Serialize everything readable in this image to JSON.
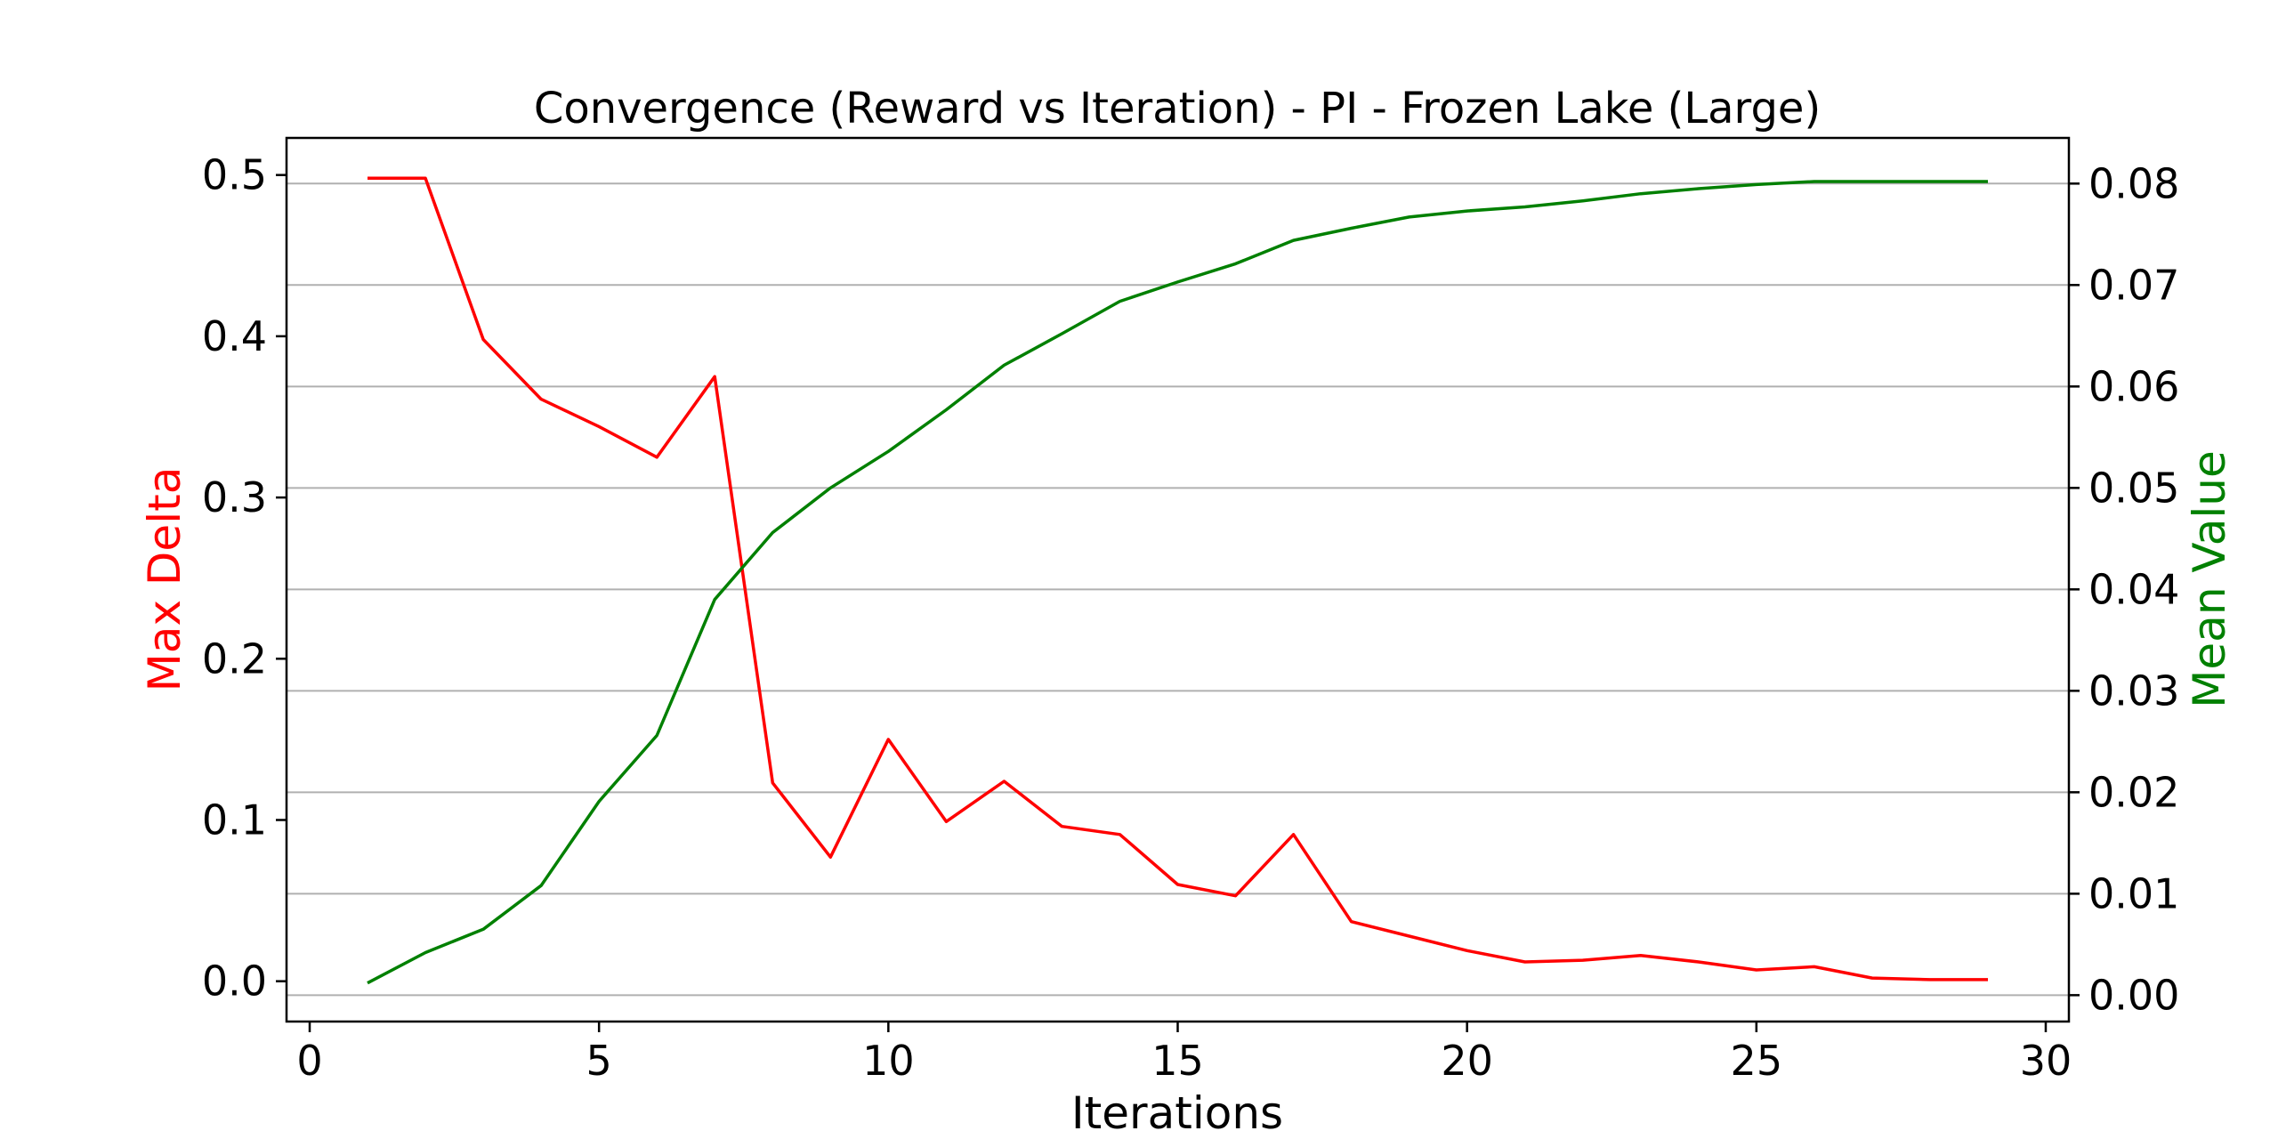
{
  "chart_data": {
    "type": "line",
    "title": "Convergence (Reward vs Iteration) - PI - Frozen Lake (Large)",
    "xlabel": "Iterations",
    "ylabel_left": "Max Delta",
    "ylabel_right": "Mean Value",
    "xlim": [
      -0.4,
      30.4
    ],
    "ylim_left": [
      -0.025,
      0.523
    ],
    "ylim_right": [
      -0.0026,
      0.0845
    ],
    "xticks": [
      "0",
      "5",
      "10",
      "15",
      "20",
      "25",
      "30"
    ],
    "yticks_left": [
      "0.0",
      "0.1",
      "0.2",
      "0.3",
      "0.4",
      "0.5"
    ],
    "yticks_right": [
      "0.00",
      "0.01",
      "0.02",
      "0.03",
      "0.04",
      "0.05",
      "0.06",
      "0.07",
      "0.08"
    ],
    "grid": "horizontal-right-axis",
    "colors": {
      "left_series": "#ff0000",
      "right_series": "#008000",
      "grid": "#b0b0b0"
    },
    "x": [
      1,
      2,
      3,
      4,
      5,
      6,
      7,
      8,
      9,
      10,
      11,
      12,
      13,
      14,
      15,
      16,
      17,
      18,
      19,
      20,
      21,
      22,
      23,
      24,
      25,
      26,
      27,
      28,
      29
    ],
    "series": [
      {
        "axis": "left",
        "values": [
          0.498,
          0.498,
          0.398,
          0.361,
          0.344,
          0.325,
          0.375,
          0.123,
          0.077,
          0.15,
          0.099,
          0.124,
          0.096,
          0.091,
          0.06,
          0.053,
          0.091,
          0.037,
          0.028,
          0.019,
          0.012,
          0.013,
          0.016,
          0.012,
          0.007,
          0.009,
          0.002,
          0.001,
          0.001
        ]
      },
      {
        "axis": "right",
        "values": [
          0.0012,
          0.0042,
          0.0065,
          0.0108,
          0.0191,
          0.0256,
          0.039,
          0.0456,
          0.05,
          0.0536,
          0.0577,
          0.0621,
          0.0652,
          0.0684,
          0.0703,
          0.0721,
          0.0744,
          0.0756,
          0.0767,
          0.0773,
          0.0777,
          0.0783,
          0.079,
          0.0795,
          0.0799,
          0.0802,
          0.0802,
          0.0802,
          0.0802
        ]
      }
    ]
  }
}
